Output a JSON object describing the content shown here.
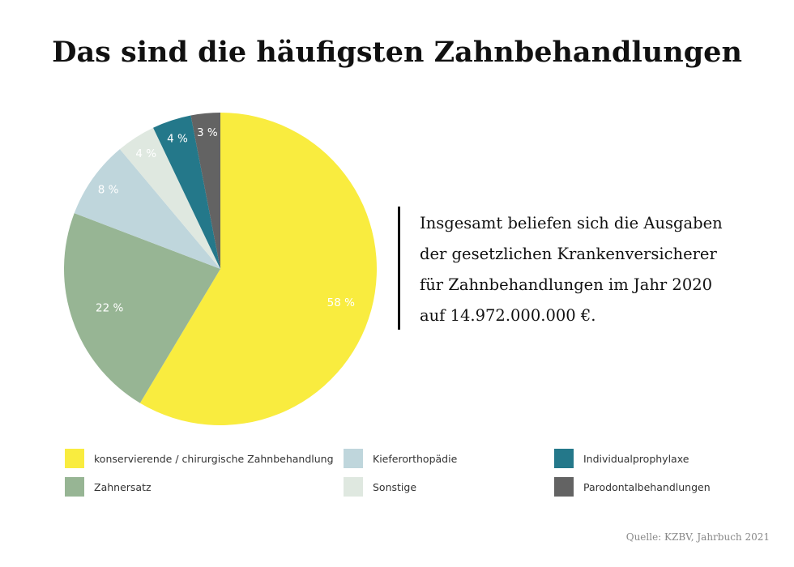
{
  "chart_data": {
    "type": "pie",
    "title": "Das sind die häufigsten Zahnbehandlungen",
    "start": "top",
    "direction": "clockwise",
    "slices": [
      {
        "name": "konservierende / chirurgische Zahnbehandlung",
        "value": 58,
        "label": "58 %",
        "color": "#f9ec3f"
      },
      {
        "name": "Zahnersatz",
        "value": 22,
        "label": "22 %",
        "color": "#97b594"
      },
      {
        "name": "Kieferorthopädie",
        "value": 8,
        "label": "8 %",
        "color": "#bfd6dc"
      },
      {
        "name": "Sonstige",
        "value": 4,
        "label": "4 %",
        "color": "#dfe8e0"
      },
      {
        "name": "Individualprophylaxe",
        "value": 4,
        "label": "4 %",
        "color": "#24788a"
      },
      {
        "name": "Parodontalbehandlungen",
        "value": 3,
        "label": "3 %",
        "color": "#636363"
      }
    ],
    "legend_placement": "bottom"
  },
  "note": {
    "lines": [
      "Insgesamt beliefen sich die Ausgaben",
      "der gesetzlichen Krankenversicherer",
      "für Zahnbehandlungen im Jahr 2020",
      "auf  14.972.000.000 €."
    ]
  },
  "source": "Quelle: KZBV,  Jahrbuch 2021"
}
